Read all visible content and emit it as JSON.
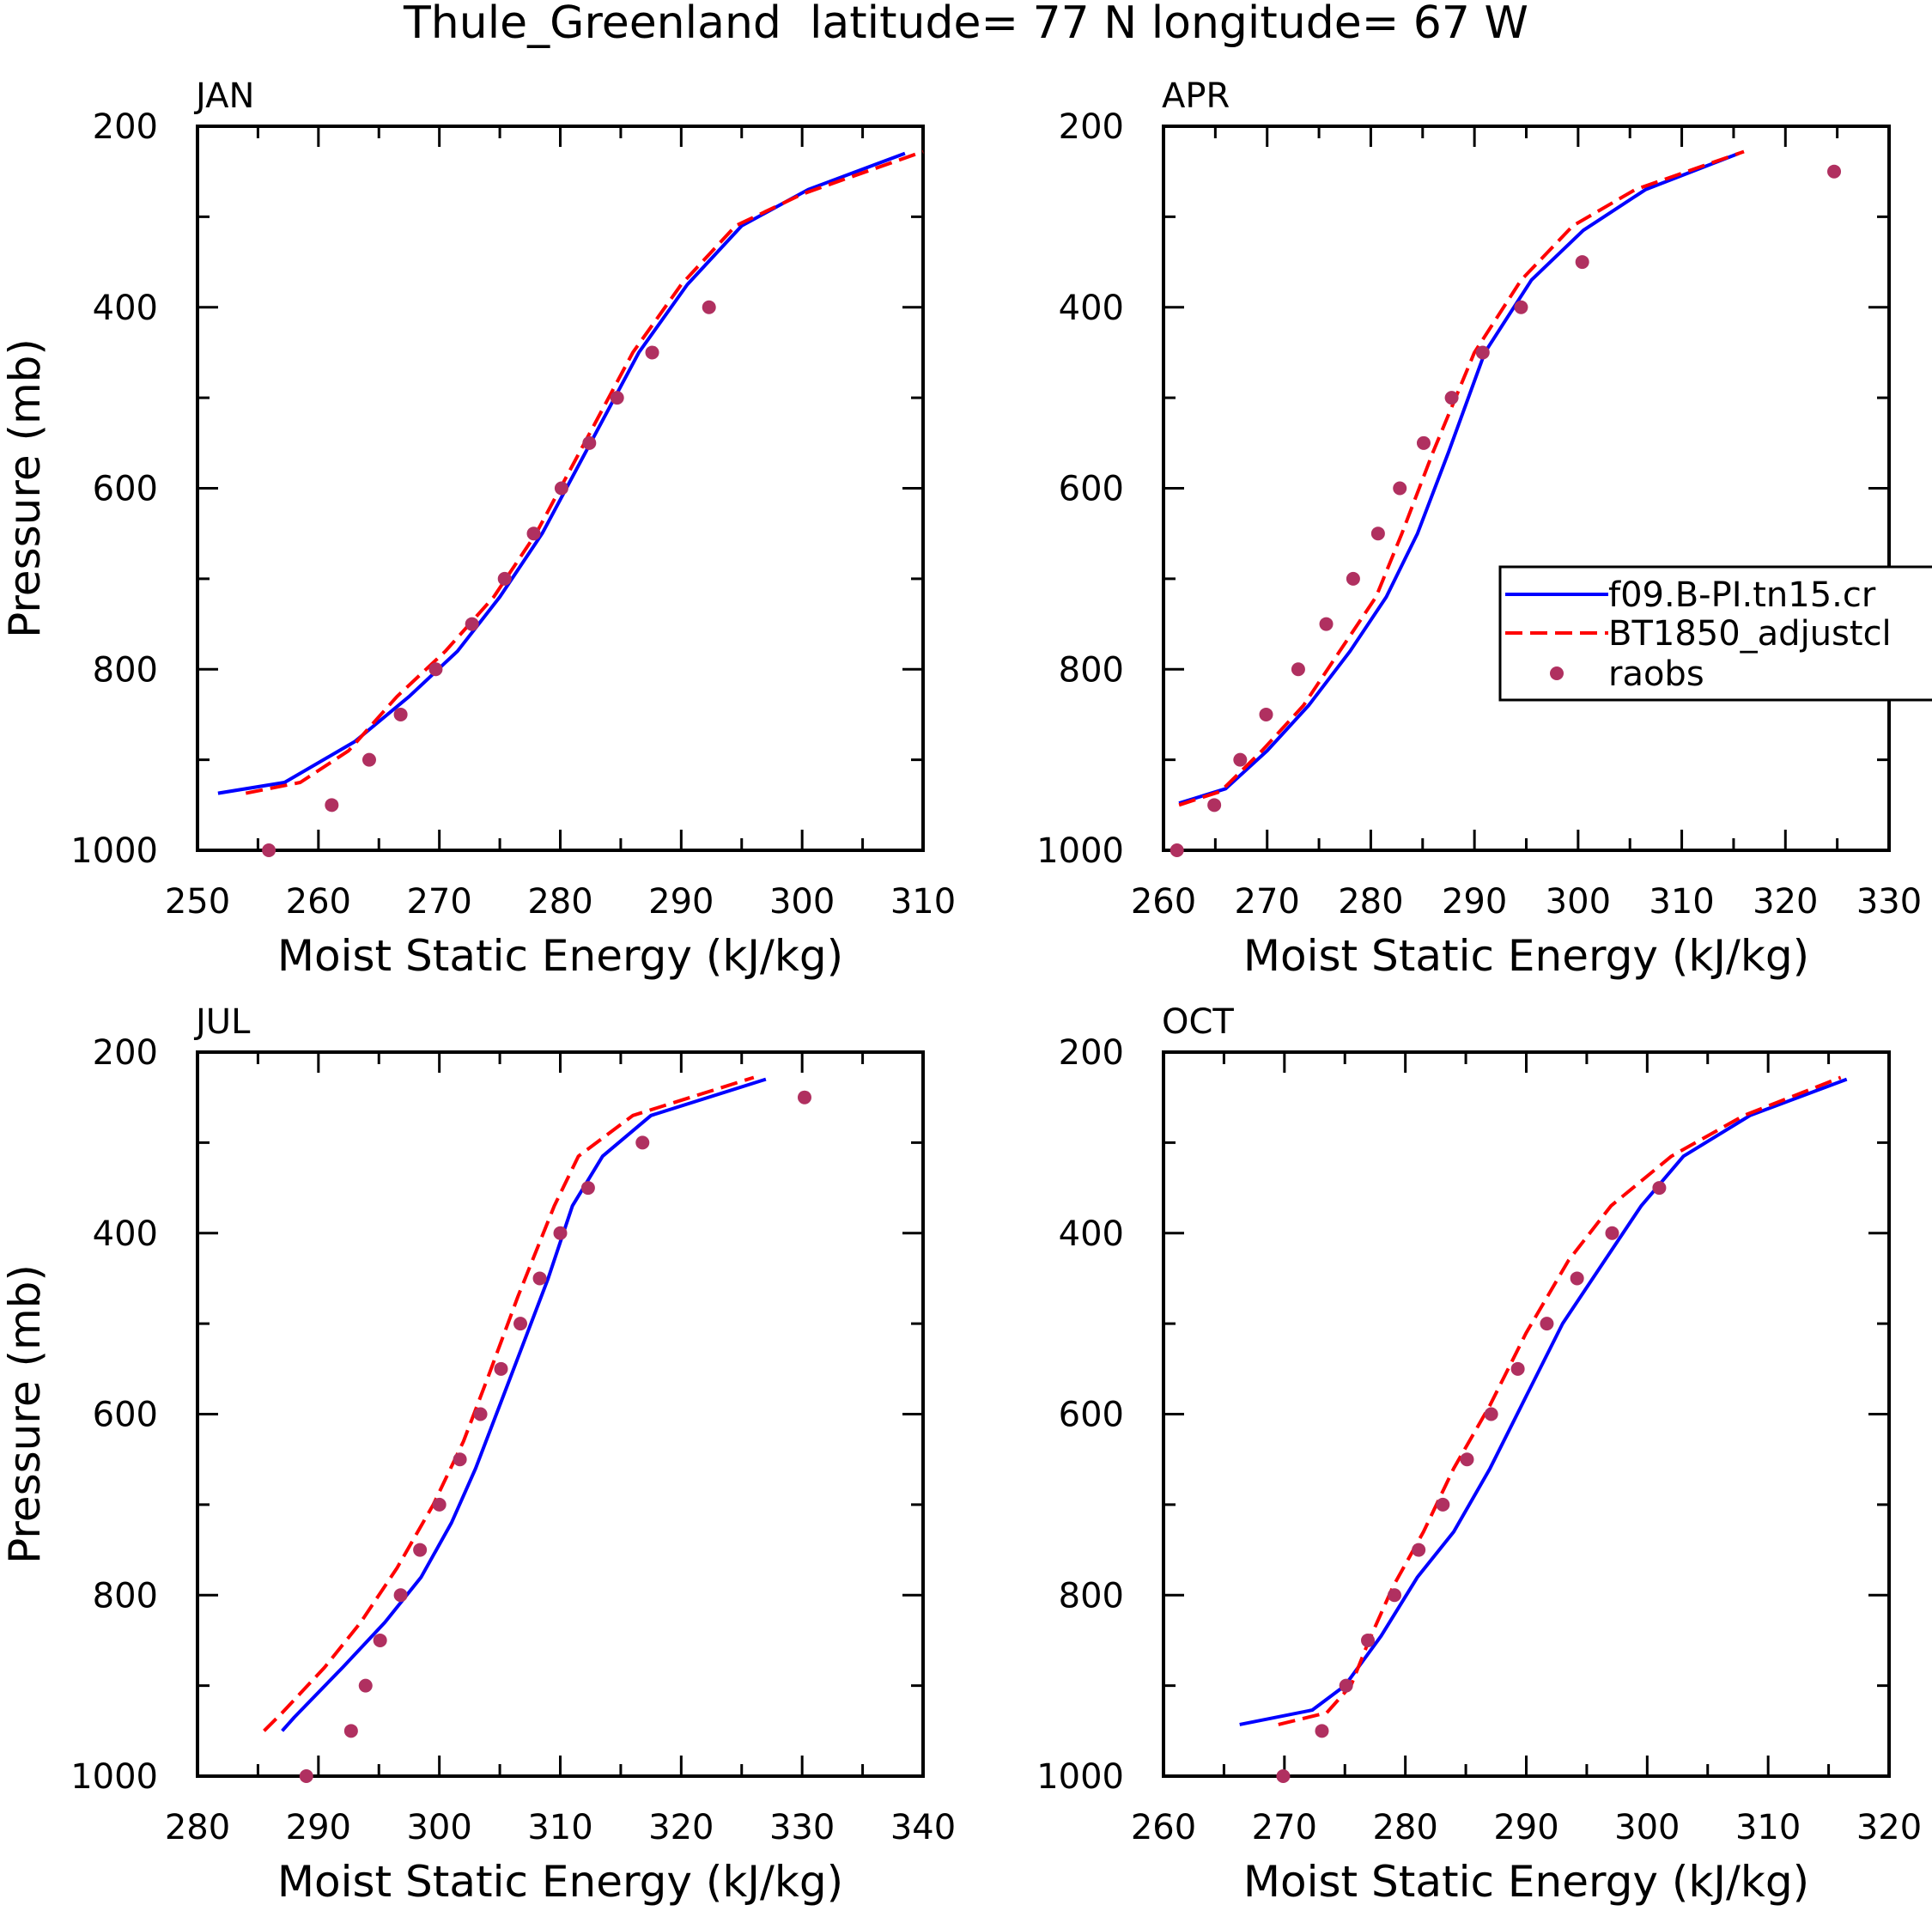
{
  "title": "Thule_Greenland  latitude= 77 N longitude= 67 W",
  "legend": {
    "entries": [
      {
        "label": "f09.B-PI.tn15.cr",
        "style": "solid",
        "color": "#0000ff"
      },
      {
        "label": "BT1850_adjustcl",
        "style": "dashed",
        "color": "#ff0000"
      },
      {
        "label": "raobs",
        "style": "marker",
        "color": "#b03060"
      }
    ]
  },
  "colors": {
    "model1": "#0000ff",
    "model2": "#ff0000",
    "obs": "#b03060"
  },
  "chart_data": [
    {
      "type": "line",
      "panel": "JAN",
      "xlabel": "Moist Static Energy (kJ/kg)",
      "ylabel": "Pressure (mb)",
      "xlim": [
        250,
        310
      ],
      "xticks": [
        "250",
        "260",
        "270",
        "280",
        "290",
        "300",
        "310"
      ],
      "ylim": [
        1000,
        200
      ],
      "yticks": [
        "200",
        "400",
        "600",
        "800",
        "1000"
      ],
      "series": [
        {
          "name": "f09.B-PI.tn15.cr",
          "x": [
            251.7,
            257.2,
            263.0,
            267.5,
            271.5,
            275.0,
            278.5,
            282.5,
            286.5,
            290.5,
            295.0,
            300.5,
            308.5
          ],
          "y": [
            937,
            925,
            880,
            830,
            780,
            720,
            650,
            550,
            450,
            375,
            310,
            270,
            230
          ]
        },
        {
          "name": "BT1850_adjustcl",
          "x": [
            254.0,
            258.5,
            262.5,
            266.5,
            270.5,
            274.5,
            278.0,
            282.0,
            286.0,
            290.0,
            294.5,
            300.0,
            310.0
          ],
          "y": [
            937,
            925,
            890,
            830,
            780,
            720,
            650,
            550,
            450,
            375,
            310,
            275,
            228
          ]
        },
        {
          "name": "raobs",
          "x": [
            255.9,
            261.1,
            264.2,
            266.8,
            269.7,
            272.7,
            275.4,
            277.8,
            280.1,
            282.4,
            284.7,
            287.6,
            292.3
          ],
          "y": [
            1000,
            950,
            900,
            850,
            800,
            750,
            700,
            650,
            600,
            550,
            500,
            450,
            400
          ]
        }
      ]
    },
    {
      "type": "line",
      "panel": "APR",
      "xlabel": "Moist Static Energy (kJ/kg)",
      "ylabel": "",
      "xlim": [
        260,
        330
      ],
      "xticks": [
        "260",
        "270",
        "280",
        "290",
        "300",
        "310",
        "320",
        "330"
      ],
      "ylim": [
        1000,
        200
      ],
      "yticks": [
        "200",
        "400",
        "600",
        "800",
        "1000"
      ],
      "series": [
        {
          "name": "f09.B-PI.tn15.cr",
          "x": [
            261.5,
            266.0,
            270.0,
            274.0,
            278.0,
            281.5,
            284.5,
            287.5,
            291.0,
            295.5,
            300.5,
            306.5,
            315.5
          ],
          "y": [
            948,
            932,
            890,
            840,
            780,
            720,
            650,
            560,
            450,
            370,
            315,
            270,
            230
          ]
        },
        {
          "name": "BT1850_adjustcl",
          "x": [
            261.5,
            265.5,
            269.5,
            273.5,
            277.0,
            280.5,
            283.0,
            286.0,
            290.0,
            294.5,
            299.5,
            305.5,
            316.0
          ],
          "y": [
            950,
            935,
            890,
            840,
            780,
            720,
            650,
            560,
            450,
            370,
            310,
            270,
            228
          ]
        },
        {
          "name": "raobs",
          "x": [
            261.3,
            264.9,
            267.4,
            269.9,
            273.0,
            275.7,
            278.3,
            280.7,
            282.8,
            285.1,
            287.8,
            290.8,
            294.5,
            300.4,
            324.7
          ],
          "y": [
            1000,
            950,
            900,
            850,
            800,
            750,
            700,
            650,
            600,
            550,
            500,
            450,
            400,
            350,
            250
          ]
        }
      ]
    },
    {
      "type": "line",
      "panel": "JUL",
      "xlabel": "Moist Static Energy (kJ/kg)",
      "ylabel": "Pressure (mb)",
      "xlim": [
        280,
        340
      ],
      "xticks": [
        "280",
        "290",
        "300",
        "310",
        "320",
        "330",
        "340"
      ],
      "ylim": [
        1000,
        200
      ],
      "yticks": [
        "200",
        "400",
        "600",
        "800",
        "1000"
      ],
      "series": [
        {
          "name": "f09.B-PI.tn15.cr",
          "x": [
            287.0,
            288.0,
            292.0,
            295.5,
            298.5,
            301.0,
            303.0,
            305.0,
            307.0,
            309.0,
            311.0,
            313.5,
            317.5,
            327.0
          ],
          "y": [
            950,
            935,
            880,
            830,
            780,
            720,
            660,
            590,
            520,
            450,
            370,
            315,
            270,
            230
          ]
        },
        {
          "name": "BT1850_adjustcl",
          "x": [
            285.5,
            287.0,
            290.5,
            293.5,
            296.5,
            299.5,
            302.0,
            304.0,
            306.5,
            309.5,
            311.5,
            316.0,
            326.0
          ],
          "y": [
            950,
            930,
            880,
            830,
            770,
            700,
            630,
            560,
            470,
            370,
            315,
            270,
            228
          ]
        },
        {
          "name": "raobs",
          "x": [
            289.0,
            292.7,
            293.9,
            295.1,
            296.8,
            298.4,
            300.0,
            301.7,
            303.4,
            305.1,
            306.7,
            308.3,
            310.0,
            312.3,
            316.8,
            330.2
          ],
          "y": [
            1000,
            950,
            900,
            850,
            800,
            750,
            700,
            650,
            600,
            550,
            500,
            450,
            400,
            350,
            300,
            250
          ]
        }
      ]
    },
    {
      "type": "line",
      "panel": "OCT",
      "xlabel": "Moist Static Energy (kJ/kg)",
      "ylabel": "",
      "xlim": [
        260,
        320
      ],
      "xticks": [
        "260",
        "270",
        "280",
        "290",
        "300",
        "310",
        "320"
      ],
      "ylim": [
        1000,
        200
      ],
      "yticks": [
        "200",
        "400",
        "600",
        "800",
        "1000"
      ],
      "series": [
        {
          "name": "f09.B-PI.tn15.cr",
          "x": [
            266.3,
            272.3,
            275.0,
            278.0,
            281.0,
            284.0,
            287.0,
            290.0,
            293.0,
            296.5,
            299.5,
            303.0,
            308.5,
            316.5
          ],
          "y": [
            943,
            927,
            900,
            845,
            780,
            730,
            660,
            580,
            500,
            430,
            370,
            315,
            270,
            230
          ]
        },
        {
          "name": "BT1850_adjustcl",
          "x": [
            269.5,
            273.5,
            275.5,
            277.0,
            279.0,
            281.5,
            284.0,
            287.0,
            290.0,
            293.5,
            297.0,
            302.0,
            308.0,
            316.0
          ],
          "y": [
            943,
            930,
            900,
            850,
            790,
            730,
            660,
            590,
            510,
            430,
            370,
            315,
            270,
            228
          ]
        },
        {
          "name": "raobs",
          "x": [
            269.9,
            273.1,
            275.1,
            276.9,
            279.1,
            281.1,
            283.1,
            285.1,
            287.1,
            289.3,
            291.7,
            294.2,
            297.1,
            301.0
          ],
          "y": [
            1000,
            950,
            900,
            850,
            800,
            750,
            700,
            650,
            600,
            550,
            500,
            450,
            400,
            350
          ]
        }
      ]
    }
  ]
}
